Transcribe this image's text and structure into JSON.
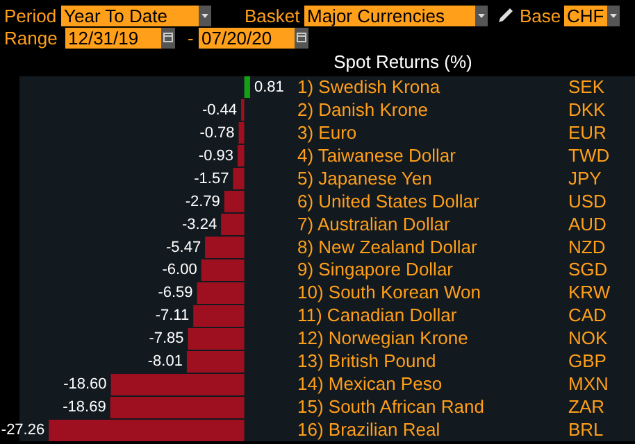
{
  "chart_data": {
    "type": "bar",
    "orientation": "horizontal",
    "title": "Spot Returns (%)",
    "annotations": [
      "Period",
      "Year To Date",
      "Basket",
      "Major Currencies",
      "Base",
      "CHF",
      "Range",
      "12/31/19",
      "-",
      "07/20/20"
    ],
    "categories": [
      "1) Swedish Krona",
      "2) Danish Krone",
      "3) Euro",
      "4) Taiwanese Dollar",
      "5) Japanese Yen",
      "6) United States Dollar",
      "7) Australian Dollar",
      "8) New Zealand Dollar",
      "9) Singapore Dollar",
      "10) South Korean Won",
      "11) Canadian Dollar",
      "12) Norwegian Krone",
      "13) British Pound",
      "14) Mexican Peso",
      "15) South African Rand",
      "16) Brazilian Real"
    ],
    "y2_categories": [
      "SEK",
      "DKK",
      "EUR",
      "TWD",
      "JPY",
      "USD",
      "AUD",
      "NZD",
      "SGD",
      "KRW",
      "CAD",
      "NOK",
      "GBP",
      "MXN",
      "ZAR",
      "BRL"
    ],
    "values": [
      0.81,
      -0.44,
      -0.78,
      -0.93,
      -1.57,
      -2.79,
      -3.24,
      -5.47,
      -6.0,
      -6.59,
      -7.11,
      -7.85,
      -8.01,
      -18.6,
      -18.69,
      -27.26
    ],
    "value_labels": [
      "0.81",
      "-0.44",
      "-0.78",
      "-0.93",
      "-1.57",
      "-2.79",
      "-3.24",
      "-5.47",
      "-6.00",
      "-6.59",
      "-7.11",
      "-7.85",
      "-8.01",
      "-18.60",
      "-18.69",
      "-27.26"
    ],
    "colors": [
      "#14a014",
      "#9e1020",
      "#9e1020",
      "#9e1020",
      "#9e1020",
      "#9e1020",
      "#9e1020",
      "#9e1020",
      "#9e1020",
      "#9e1020",
      "#9e1020",
      "#9e1020",
      "#9e1020",
      "#9e1020",
      "#9e1020",
      "#9e1020"
    ]
  }
}
